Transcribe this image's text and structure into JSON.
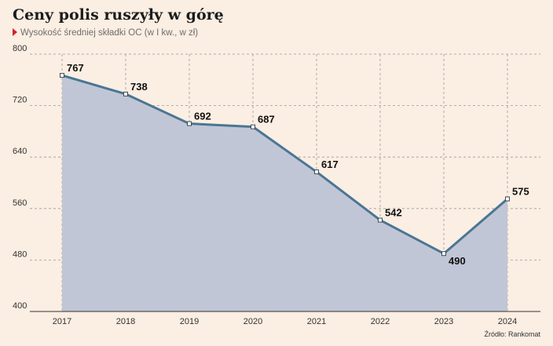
{
  "header": {
    "title": "Ceny polis ruszyły w górę",
    "subtitle": "Wysokość średniej składki OC (w I kw., w zł)"
  },
  "footer": {
    "source": "Źródło: Rankomat"
  },
  "colors": {
    "line": "#4a7694",
    "fill": "#c1c6d6",
    "grid": "#9a9a9a",
    "accent": "#d8202a"
  },
  "chart_data": {
    "type": "area",
    "title": "Ceny polis ruszyły w górę",
    "subtitle": "Wysokość średniej składki OC (w I kw., w zł)",
    "categories": [
      "2017",
      "2018",
      "2019",
      "2020",
      "2021",
      "2022",
      "2023",
      "2024"
    ],
    "values": [
      767,
      738,
      692,
      687,
      617,
      542,
      490,
      575
    ],
    "ylim": [
      400,
      800
    ],
    "yticks": [
      400,
      480,
      560,
      640,
      720,
      800
    ],
    "grid": true,
    "data_labels": true
  }
}
